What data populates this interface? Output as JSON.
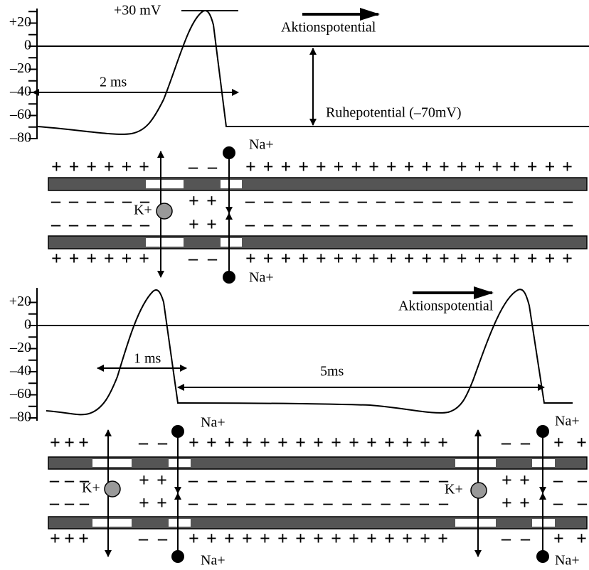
{
  "panels": [
    {
      "yticks": [
        "+20",
        "0",
        "–20",
        "–40",
        "–60",
        "–80"
      ],
      "peak_label": "+30 mV",
      "direction": "Aktionspotential",
      "duration": "2 ms",
      "rest": "Ruhepotential (–70mV)"
    },
    {
      "yticks": [
        "+20",
        "0",
        "–20",
        "–40",
        "–60",
        "–80"
      ],
      "direction": "Aktionspotential",
      "duration_1": "1 ms",
      "duration_2": "5ms"
    }
  ],
  "membranes": [
    {
      "outer_top": [
        "++++++",
        "– –",
        "+++++++++++++++++++"
      ],
      "inner_1": [
        "– – – – – –",
        "+ +",
        "– – – – – – – – – – – – – – – – – –"
      ],
      "inner_2": [
        "– – – – – –",
        "+ +",
        "– – – – – – – – – – – – – – – – – –"
      ],
      "outer_bottom": [
        "++++++",
        "– –",
        "+++++++++++++++++++"
      ],
      "ions": [
        {
          "k": "K+",
          "na_top": "Na+",
          "na_bottom": "Na+"
        }
      ]
    },
    {
      "outer_top": [
        "+++",
        "– –",
        "+++++++++++++++",
        "– –",
        "++"
      ],
      "inner_1": [
        "– – –",
        "+ +",
        "– – – – – – – – – – – – – –",
        "+ +",
        "– –"
      ],
      "inner_2": [
        "– – –",
        "+ +",
        "– – – – – – – – – – – – – –",
        "+ +",
        "– –"
      ],
      "outer_bottom": [
        "+++",
        "– –",
        "+++++++++++++++",
        "– –",
        "++"
      ],
      "ions": [
        {
          "k": "K+",
          "na_top": "Na+",
          "na_bottom": "Na+"
        },
        {
          "k": "K+",
          "na_top": "Na+",
          "na_bottom": "Na+"
        }
      ]
    }
  ]
}
